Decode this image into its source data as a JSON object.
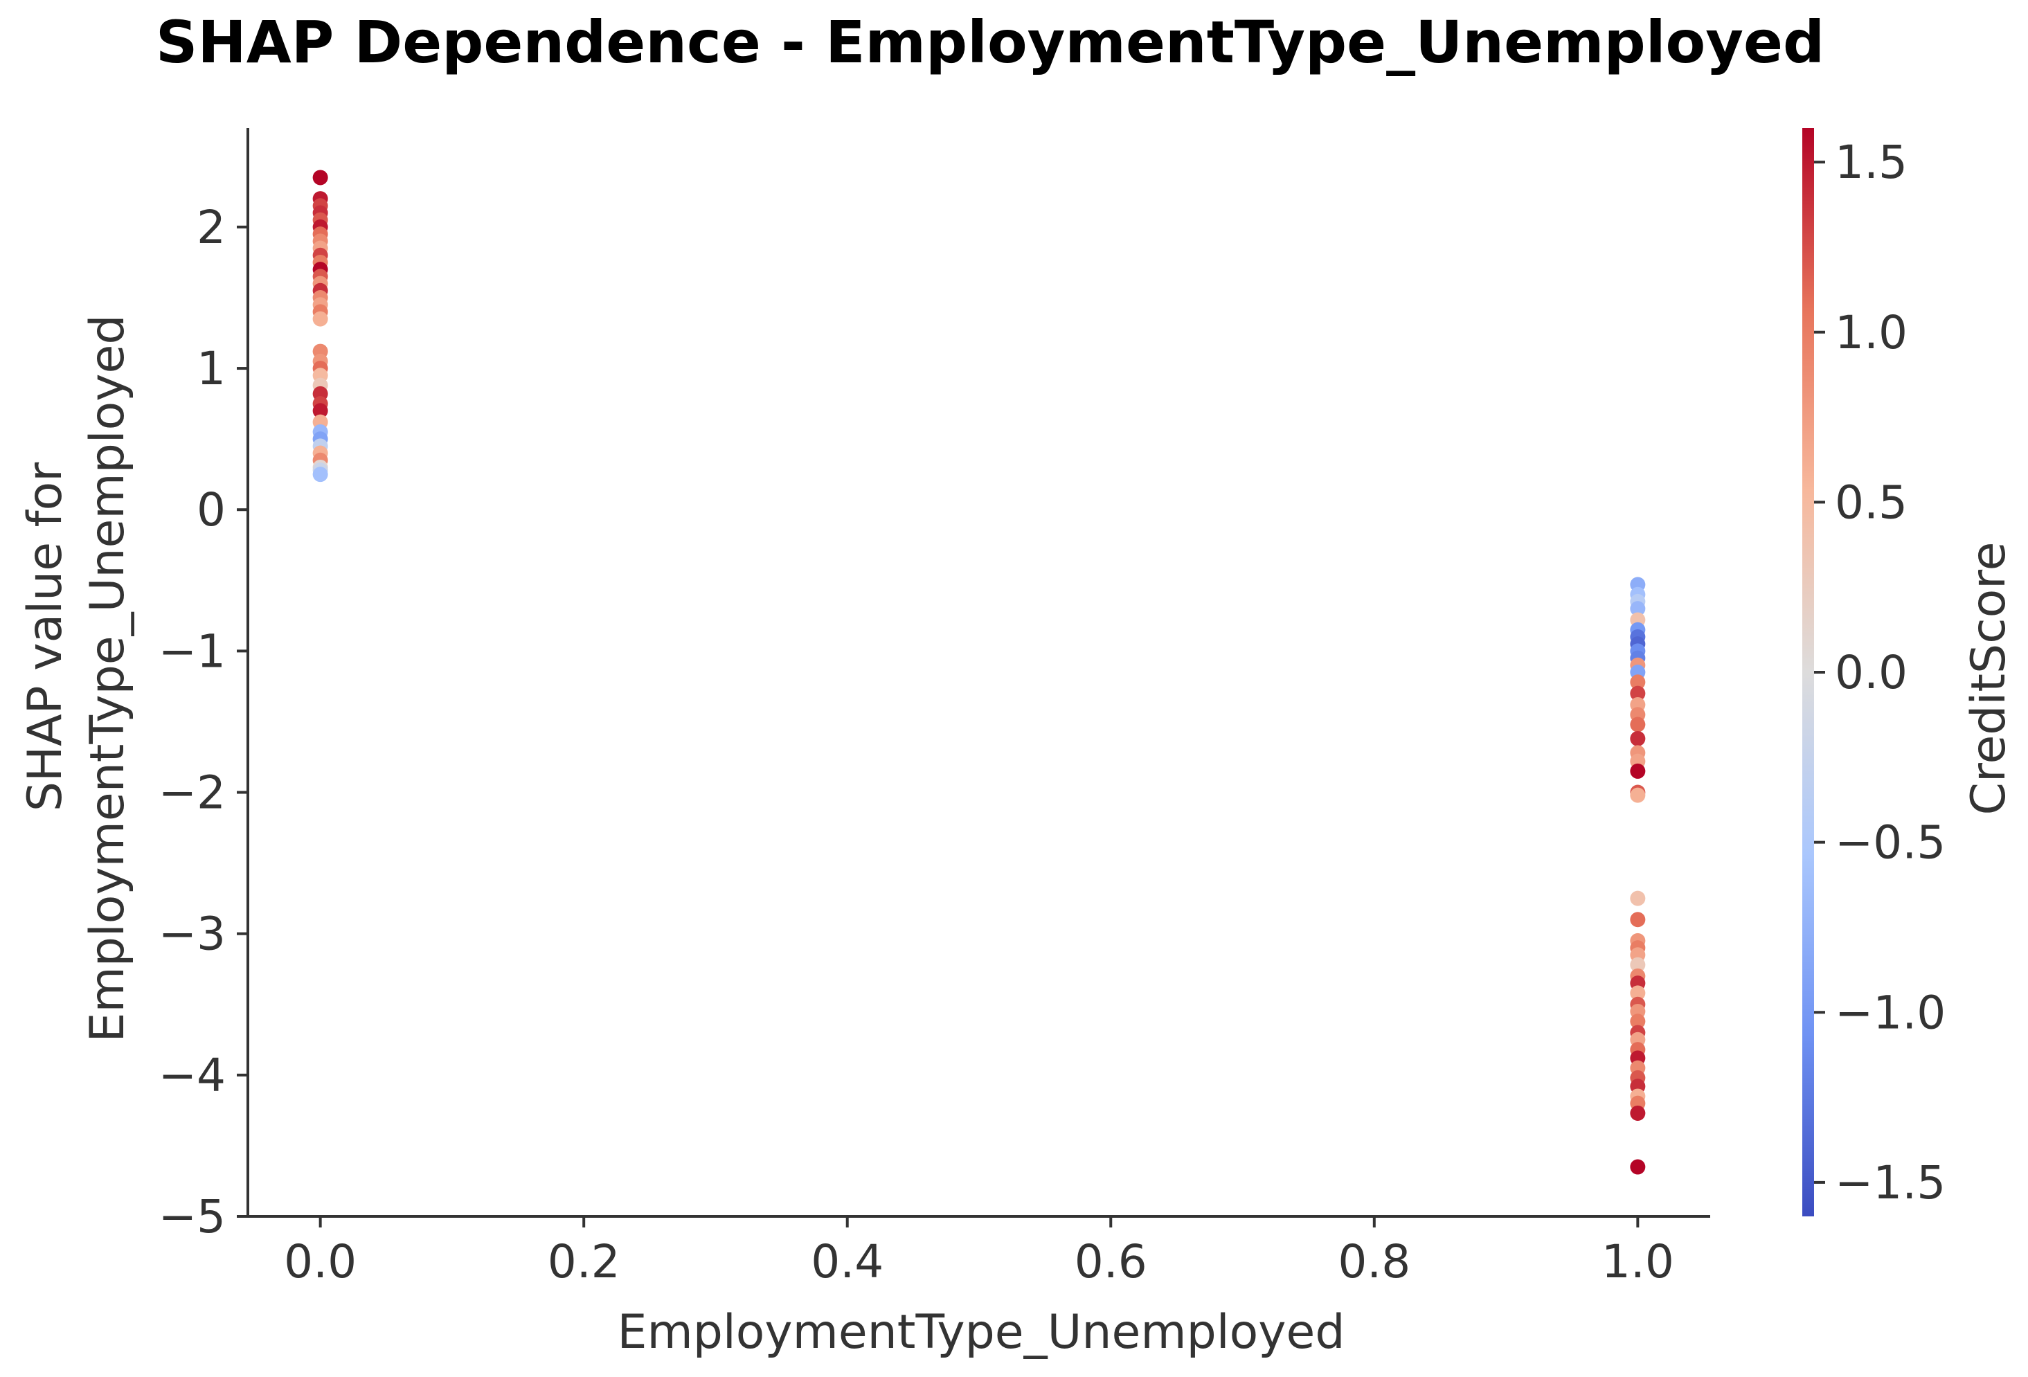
{
  "chart_data": {
    "type": "scatter",
    "title": "SHAP Dependence - EmploymentType_Unemployed",
    "xlabel": "EmploymentType_Unemployed",
    "ylabel_lines": [
      "SHAP value for",
      "EmploymentType_Unemployed"
    ],
    "xlim": [
      -0.055,
      1.055
    ],
    "ylim": [
      -5.0,
      2.7
    ],
    "x_ticks": [
      0.0,
      0.2,
      0.4,
      0.6,
      0.8,
      1.0
    ],
    "x_tick_labels": [
      "0.0",
      "0.2",
      "0.4",
      "0.6",
      "0.8",
      "1.0"
    ],
    "y_ticks": [
      2,
      1,
      0,
      -1,
      -2,
      -3,
      -4,
      -5
    ],
    "y_tick_labels": [
      "2",
      "1",
      "0",
      "−1",
      "−2",
      "−3",
      "−4",
      "−5"
    ],
    "grid": false,
    "colorbar": {
      "label": "CreditScore",
      "range": [
        -1.6,
        1.6
      ],
      "ticks": [
        1.5,
        1.0,
        0.5,
        0.0,
        -0.5,
        -1.0,
        -1.5
      ],
      "tick_labels": [
        "1.5",
        "1.0",
        "0.5",
        "0.0",
        "−0.5",
        "−1.0",
        "−1.5"
      ],
      "colormap": "coolwarm",
      "stops": [
        "#3b4cc0",
        "#6f92f3",
        "#aac7fd",
        "#dddcdc",
        "#f7b89c",
        "#e7745b",
        "#b40426"
      ]
    },
    "points": [
      {
        "x": 0,
        "y": 2.35,
        "c": 1.6
      },
      {
        "x": 0,
        "y": 2.2,
        "c": 1.5
      },
      {
        "x": 0,
        "y": 2.15,
        "c": 1.3
      },
      {
        "x": 0,
        "y": 2.1,
        "c": 1.4
      },
      {
        "x": 0,
        "y": 2.05,
        "c": 1.2
      },
      {
        "x": 0,
        "y": 2.0,
        "c": 1.5
      },
      {
        "x": 0,
        "y": 1.95,
        "c": 1.1
      },
      {
        "x": 0,
        "y": 1.9,
        "c": 0.9
      },
      {
        "x": 0,
        "y": 1.85,
        "c": 0.7
      },
      {
        "x": 0,
        "y": 1.8,
        "c": 1.3
      },
      {
        "x": 0,
        "y": 1.75,
        "c": 1.0
      },
      {
        "x": 0,
        "y": 1.7,
        "c": 1.6
      },
      {
        "x": 0,
        "y": 1.65,
        "c": 1.2
      },
      {
        "x": 0,
        "y": 1.6,
        "c": 0.8
      },
      {
        "x": 0,
        "y": 1.55,
        "c": 1.4
      },
      {
        "x": 0,
        "y": 1.5,
        "c": 0.9
      },
      {
        "x": 0,
        "y": 1.45,
        "c": 0.7
      },
      {
        "x": 0,
        "y": 1.4,
        "c": 1.0
      },
      {
        "x": 0,
        "y": 1.35,
        "c": 0.6
      },
      {
        "x": 0,
        "y": 1.12,
        "c": 0.9
      },
      {
        "x": 0,
        "y": 1.05,
        "c": 0.8
      },
      {
        "x": 0,
        "y": 1.0,
        "c": 1.1
      },
      {
        "x": 0,
        "y": 0.95,
        "c": 0.5
      },
      {
        "x": 0,
        "y": 0.88,
        "c": 0.3
      },
      {
        "x": 0,
        "y": 0.82,
        "c": 1.4
      },
      {
        "x": 0,
        "y": 0.75,
        "c": 1.3
      },
      {
        "x": 0,
        "y": 0.7,
        "c": 1.5
      },
      {
        "x": 0,
        "y": 0.62,
        "c": 0.6
      },
      {
        "x": 0,
        "y": 0.55,
        "c": -0.7
      },
      {
        "x": 0,
        "y": 0.5,
        "c": -0.9
      },
      {
        "x": 0,
        "y": 0.45,
        "c": -0.3
      },
      {
        "x": 0,
        "y": 0.4,
        "c": 0.6
      },
      {
        "x": 0,
        "y": 0.35,
        "c": 0.9
      },
      {
        "x": 0,
        "y": 0.3,
        "c": 0.1
      },
      {
        "x": 0,
        "y": 0.28,
        "c": -0.2
      },
      {
        "x": 0,
        "y": 0.25,
        "c": -0.6
      },
      {
        "x": 1,
        "y": -0.53,
        "c": -0.8
      },
      {
        "x": 1,
        "y": -0.6,
        "c": -0.6
      },
      {
        "x": 1,
        "y": -0.65,
        "c": -0.4
      },
      {
        "x": 1,
        "y": -0.7,
        "c": -0.7
      },
      {
        "x": 1,
        "y": -0.78,
        "c": 0.4
      },
      {
        "x": 1,
        "y": -0.85,
        "c": -1.0
      },
      {
        "x": 1,
        "y": -0.9,
        "c": -1.3
      },
      {
        "x": 1,
        "y": -0.95,
        "c": -1.4
      },
      {
        "x": 1,
        "y": -1.0,
        "c": -1.1
      },
      {
        "x": 1,
        "y": -1.05,
        "c": -1.2
      },
      {
        "x": 1,
        "y": -1.1,
        "c": 0.8
      },
      {
        "x": 1,
        "y": -1.15,
        "c": -0.9
      },
      {
        "x": 1,
        "y": -1.22,
        "c": 1.0
      },
      {
        "x": 1,
        "y": -1.3,
        "c": 1.3
      },
      {
        "x": 1,
        "y": -1.38,
        "c": 0.7
      },
      {
        "x": 1,
        "y": -1.45,
        "c": 0.9
      },
      {
        "x": 1,
        "y": -1.52,
        "c": 1.1
      },
      {
        "x": 1,
        "y": -1.62,
        "c": 1.4
      },
      {
        "x": 1,
        "y": -1.72,
        "c": 0.8
      },
      {
        "x": 1,
        "y": -1.78,
        "c": 0.7
      },
      {
        "x": 1,
        "y": -1.85,
        "c": 1.6
      },
      {
        "x": 1,
        "y": -2.0,
        "c": 1.2
      },
      {
        "x": 1,
        "y": -2.02,
        "c": 0.6
      },
      {
        "x": 1,
        "y": -2.75,
        "c": 0.4
      },
      {
        "x": 1,
        "y": -2.9,
        "c": 1.1
      },
      {
        "x": 1,
        "y": -3.05,
        "c": 0.8
      },
      {
        "x": 1,
        "y": -3.1,
        "c": 1.0
      },
      {
        "x": 1,
        "y": -3.15,
        "c": 0.7
      },
      {
        "x": 1,
        "y": -3.22,
        "c": 0.3
      },
      {
        "x": 1,
        "y": -3.3,
        "c": 0.9
      },
      {
        "x": 1,
        "y": -3.35,
        "c": 1.4
      },
      {
        "x": 1,
        "y": -3.42,
        "c": 0.6
      },
      {
        "x": 1,
        "y": -3.5,
        "c": 1.2
      },
      {
        "x": 1,
        "y": -3.55,
        "c": 0.8
      },
      {
        "x": 1,
        "y": -3.62,
        "c": 1.0
      },
      {
        "x": 1,
        "y": -3.7,
        "c": 1.3
      },
      {
        "x": 1,
        "y": -3.75,
        "c": 0.7
      },
      {
        "x": 1,
        "y": -3.82,
        "c": 1.1
      },
      {
        "x": 1,
        "y": -3.88,
        "c": 1.5
      },
      {
        "x": 1,
        "y": -3.95,
        "c": 0.9
      },
      {
        "x": 1,
        "y": -4.02,
        "c": 1.2
      },
      {
        "x": 1,
        "y": -4.08,
        "c": 1.4
      },
      {
        "x": 1,
        "y": -4.15,
        "c": 0.6
      },
      {
        "x": 1,
        "y": -4.2,
        "c": 1.0
      },
      {
        "x": 1,
        "y": -4.27,
        "c": 1.5
      },
      {
        "x": 1,
        "y": -4.65,
        "c": 1.6
      }
    ]
  }
}
